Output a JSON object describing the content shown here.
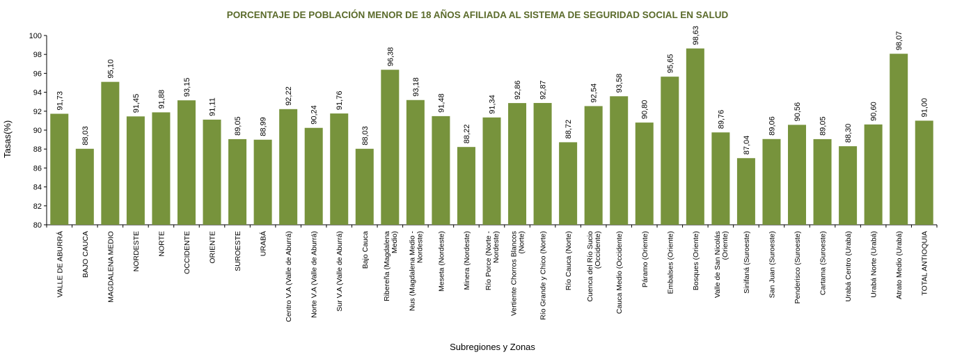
{
  "chart_data": {
    "type": "bar",
    "title": "PORCENTAJE DE POBLACIÓN MENOR DE 18 AÑOS AFILIADA AL SISTEMA DE SEGURIDAD SOCIAL EN SALUD",
    "xlabel": "Subregiones y Zonas",
    "ylabel": "Tasas(%)",
    "ylim": [
      80,
      100
    ],
    "yticks": [
      80,
      82,
      84,
      86,
      88,
      90,
      92,
      94,
      96,
      98,
      100
    ],
    "ytick_labels": [
      "80",
      "82",
      "84",
      "86",
      "88",
      "90",
      "92",
      "94",
      "96",
      "98",
      "100"
    ],
    "grid": false,
    "legend": "none",
    "bar_color": "#77933c",
    "title_color": "#5a6a2a",
    "categories": [
      "VALLE DE ABURRÁ",
      "BAJO CAUCA",
      "MAGDALENA MEDIO",
      "NORDESTE",
      "NORTE",
      "OCCIDENTE",
      "ORIENTE",
      "SUROESTE",
      "URABÁ",
      "Centro V.A (Valle de Aburrá)",
      "Norte V.A (Valle de Aburrá)",
      "Sur V.A (Valle de Aburrá)",
      "Bajo Cauca",
      "Ribereña (Magdalena Medio)",
      "Nus (Magdalena Medio - Nordeste)",
      "Meseta (Nordeste)",
      "Minera (Nordeste)",
      "Río Porce (Norte - Nordeste)",
      "Vertiente Chorros Blancos (Norte)",
      "Río Grande y Chico (Norte)",
      "Río Cauca (Norte)",
      "Cuenca del Río Sucio (Occidente)",
      "Cauca Medio (Occidente)",
      "Páramo (Oriente)",
      "Embalses (Oriente)",
      "Bosques (Oriente)",
      "Valle de San Nicolás (Oriente)",
      "Sinifaná (Suroeste)",
      "San Juan (Suroeste)",
      "Penderisco (Suroeste)",
      "Cartama (Suroeste)",
      "Urabá Centro (Urabá)",
      "Urabá Norte (Urabá)",
      "Atrato Medio (Urabá)",
      "TOTAL ANTIOQUIA"
    ],
    "category_lines": [
      [
        "VALLE DE ABURRÁ"
      ],
      [
        "BAJO CAUCA"
      ],
      [
        "MAGDALENA MEDIO"
      ],
      [
        "NORDESTE"
      ],
      [
        "NORTE"
      ],
      [
        "OCCIDENTE"
      ],
      [
        "ORIENTE"
      ],
      [
        "SUROESTE"
      ],
      [
        "URABÁ"
      ],
      [
        "Centro V.A (Valle de Aburrá)"
      ],
      [
        "Norte V.A (Valle de Aburrá)"
      ],
      [
        "Sur V.A (Valle de Aburrá)"
      ],
      [
        "Bajo Cauca"
      ],
      [
        "Ribereña (Magdalena",
        "Medio)"
      ],
      [
        "Nus (Magdalena Medio -",
        "Nordeste)"
      ],
      [
        "Meseta (Nordeste)"
      ],
      [
        "Minera (Nordeste)"
      ],
      [
        "Río Porce (Norte -",
        "Nordeste)"
      ],
      [
        "Vertiente Chorros Blancos",
        "(Norte)"
      ],
      [
        "Río Grande y Chico (Norte)"
      ],
      [
        "Río Cauca (Norte)"
      ],
      [
        "Cuenca del Río Sucio",
        "(Occidente)"
      ],
      [
        "Cauca Medio (Occidente)"
      ],
      [
        "Páramo (Oriente)"
      ],
      [
        "Embalses (Oriente)"
      ],
      [
        "Bosques (Oriente)"
      ],
      [
        "Valle de San Nicolás",
        "(Oriente)"
      ],
      [
        "Sinifaná (Suroeste)"
      ],
      [
        "San Juan (Suroeste)"
      ],
      [
        "Penderisco (Suroeste)"
      ],
      [
        "Cartama (Suroeste)"
      ],
      [
        "Urabá Centro (Urabá)"
      ],
      [
        "Urabá Norte (Urabá)"
      ],
      [
        "Atrato Medio (Urabá)"
      ],
      [
        "TOTAL ANTIOQUIA"
      ]
    ],
    "values": [
      91.73,
      88.03,
      95.1,
      91.45,
      91.88,
      93.15,
      91.11,
      89.05,
      88.99,
      92.22,
      90.24,
      91.76,
      88.03,
      96.38,
      93.18,
      91.48,
      88.22,
      91.34,
      92.86,
      92.87,
      88.72,
      92.54,
      93.58,
      90.8,
      95.65,
      98.63,
      89.76,
      87.04,
      89.06,
      90.56,
      89.05,
      88.3,
      90.6,
      98.07,
      91.0
    ],
    "value_labels": [
      "91,73",
      "88,03",
      "95,10",
      "91,45",
      "91,88",
      "93,15",
      "91,11",
      "89,05",
      "88,99",
      "92,22",
      "90,24",
      "91,76",
      "88,03",
      "96,38",
      "93,18",
      "91,48",
      "88,22",
      "91,34",
      "92,86",
      "92,87",
      "88,72",
      "92,54",
      "93,58",
      "90,80",
      "95,65",
      "98,63",
      "89,76",
      "87,04",
      "89,06",
      "90,56",
      "89,05",
      "88,30",
      "90,60",
      "98,07",
      "91,00"
    ]
  }
}
